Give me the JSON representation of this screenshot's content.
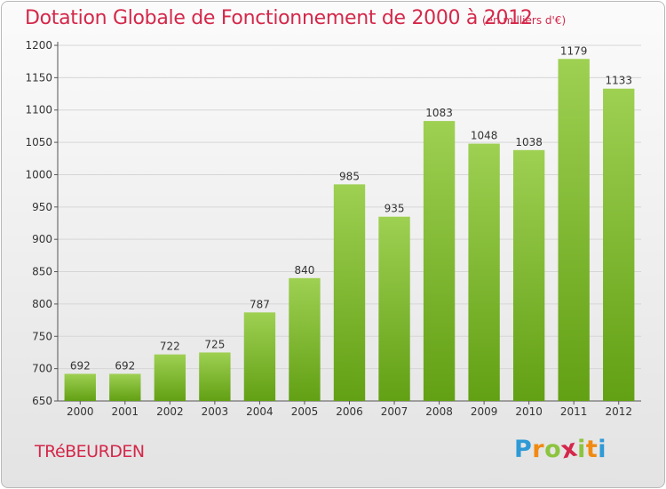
{
  "header": {
    "title": "Dotation Globale de Fonctionnement de 2000 à 2012",
    "subtitle": "(en milliers d'€)"
  },
  "footer": {
    "commune": "TRéBEURDEN",
    "logo_text": "Proxiti"
  },
  "colors": {
    "bar_top": "#9ed052",
    "bar_bottom": "#62a014",
    "title": "#d4284a",
    "axis_text": "#333333",
    "grid": "#d6d6d6"
  },
  "chart_data": {
    "type": "bar",
    "title": "Dotation Globale de Fonctionnement de 2000 à 2012",
    "subtitle": "(en milliers d'€)",
    "categories": [
      "2000",
      "2001",
      "2002",
      "2003",
      "2004",
      "2005",
      "2006",
      "2007",
      "2008",
      "2009",
      "2010",
      "2011",
      "2012"
    ],
    "values": [
      692,
      692,
      722,
      725,
      787,
      840,
      985,
      935,
      1083,
      1048,
      1038,
      1179,
      1133
    ],
    "ylim": [
      650,
      1200
    ],
    "yticks": [
      650,
      700,
      750,
      800,
      850,
      900,
      950,
      1000,
      1050,
      1100,
      1150,
      1200
    ],
    "grid": true,
    "xlabel": "",
    "ylabel": ""
  }
}
